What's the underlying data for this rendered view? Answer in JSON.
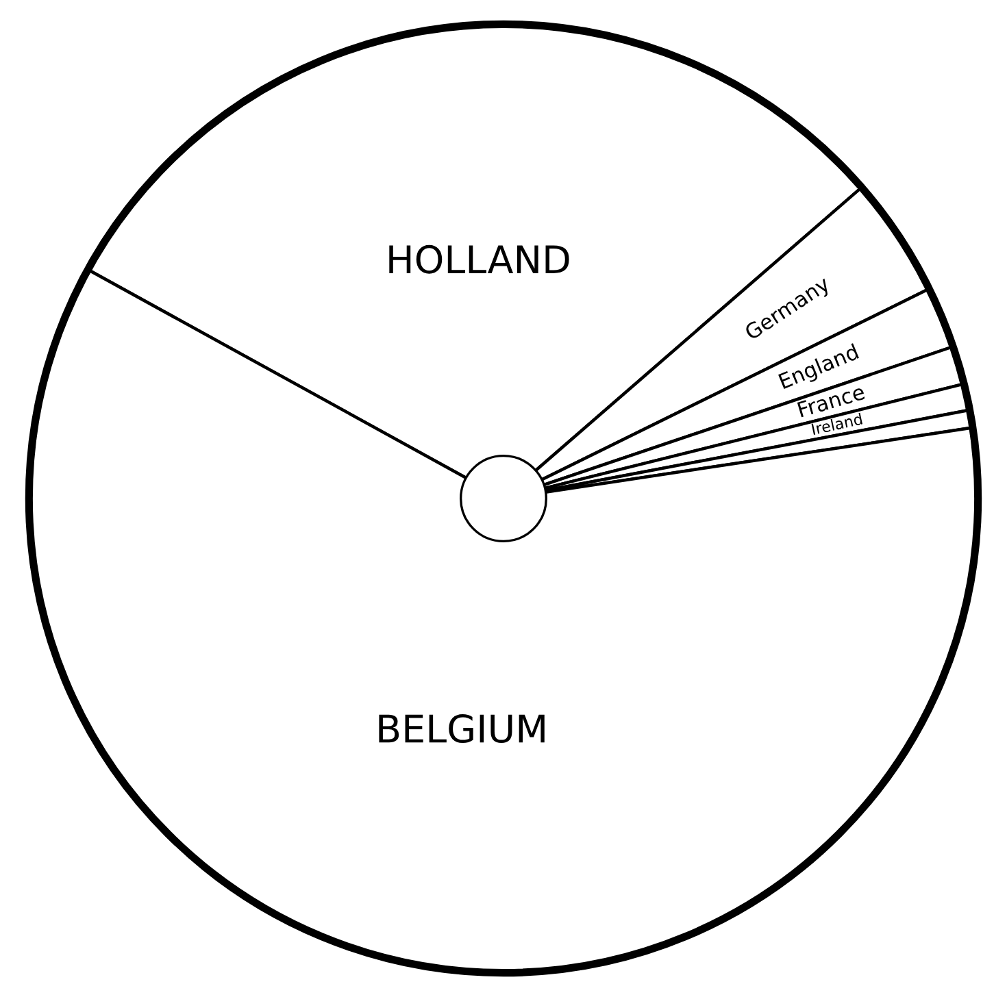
{
  "chart_data": {
    "type": "pie",
    "categories": [
      "HOLLAND",
      "Germany",
      "England",
      "France",
      "Ireland",
      null,
      "BELGIUM"
    ],
    "values": [
      30.6,
      4.1,
      2.1,
      1.3,
      0.9,
      0.6,
      60.4
    ],
    "colors": [
      "#ffffff",
      "#ffffff",
      "#ffffff",
      "#ffffff",
      "#ffffff",
      "#ffffff",
      "#ffffff"
    ]
  }
}
